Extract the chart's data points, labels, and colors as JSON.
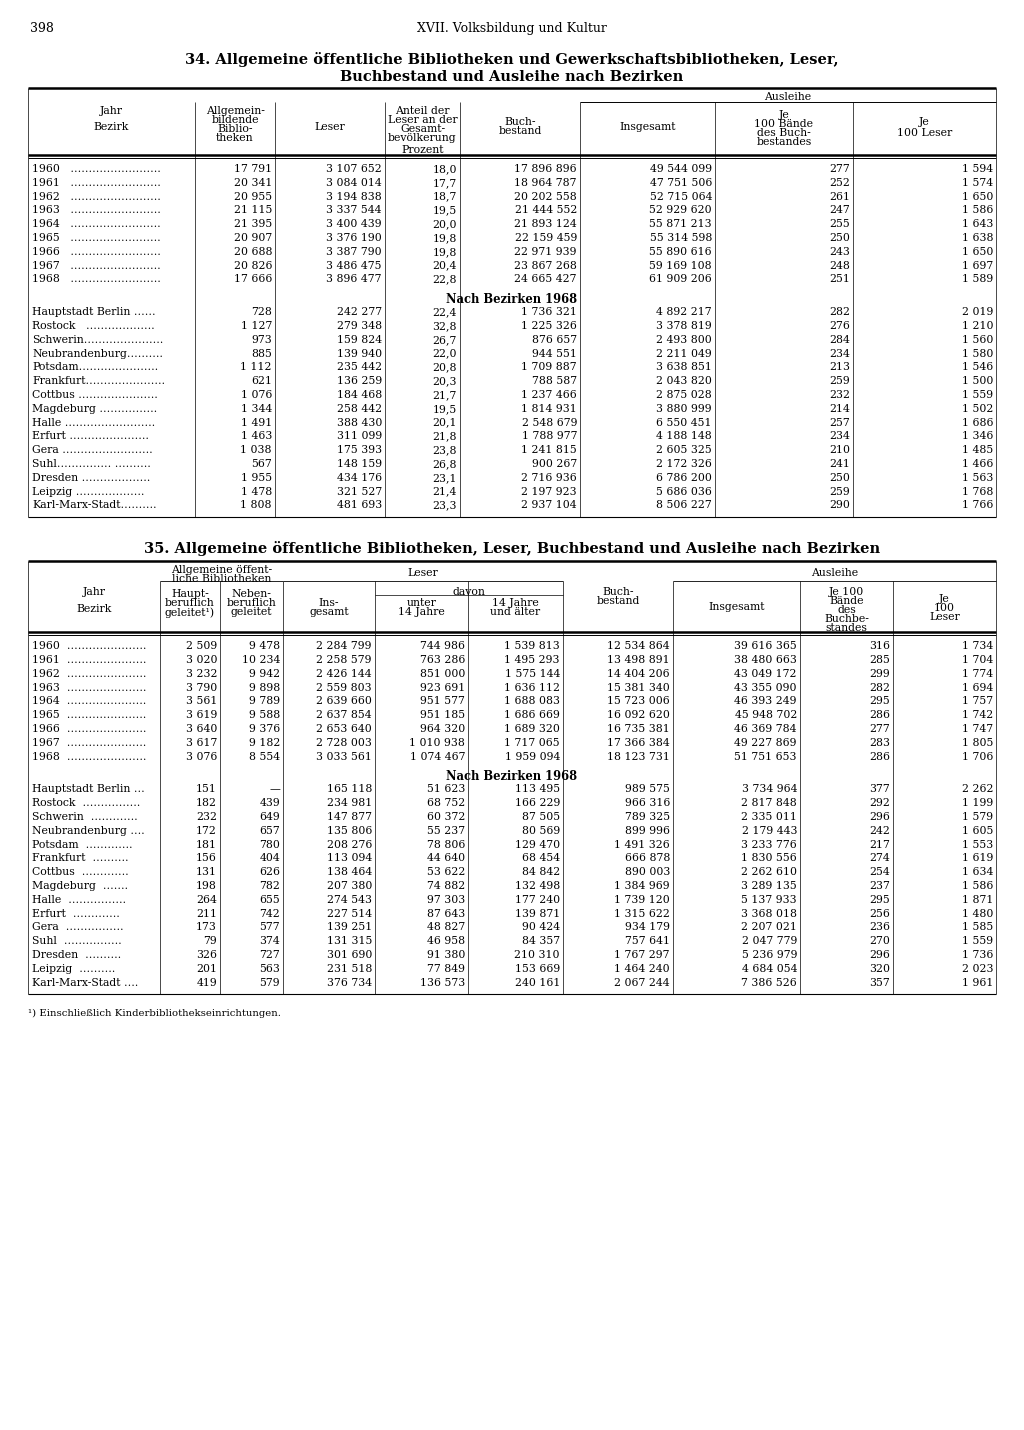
{
  "page_number": "398",
  "page_header": "XVII. Volksbildung und Kultur",
  "table1_title_line1": "34. Allgemeine öffentliche Bibliotheken und Gewerkschaftsbibliotheken, Leser,",
  "table1_title_line2": "Buchbestand und Ausleihe nach Bezirken",
  "table1_years": [
    [
      "1960   …………………….",
      "17 791",
      "3 107 652",
      "18,0",
      "17 896 896",
      "49 544 099",
      "277",
      "1 594"
    ],
    [
      "1961   …………………….",
      "20 341",
      "3 084 014",
      "17,7",
      "18 964 787",
      "47 751 506",
      "252",
      "1 574"
    ],
    [
      "1962   …………………….",
      "20 955",
      "3 194 838",
      "18,7",
      "20 202 558",
      "52 715 064",
      "261",
      "1 650"
    ],
    [
      "1963   …………………….",
      "21 115",
      "3 337 544",
      "19,5",
      "21 444 552",
      "52 929 620",
      "247",
      "1 586"
    ],
    [
      "1964   …………………….",
      "21 395",
      "3 400 439",
      "20,0",
      "21 893 124",
      "55 871 213",
      "255",
      "1 643"
    ],
    [
      "1965   …………………….",
      "20 907",
      "3 376 190",
      "19,8",
      "22 159 459",
      "55 314 598",
      "250",
      "1 638"
    ],
    [
      "1966   …………………….",
      "20 688",
      "3 387 790",
      "19,8",
      "22 971 939",
      "55 890 616",
      "243",
      "1 650"
    ],
    [
      "1967   …………………….",
      "20 826",
      "3 486 475",
      "20,4",
      "23 867 268",
      "59 169 108",
      "248",
      "1 697"
    ],
    [
      "1968   …………………….",
      "17 666",
      "3 896 477",
      "22,8",
      "24 665 427",
      "61 909 206",
      "251",
      "1 589"
    ]
  ],
  "table1_bezirken_header": "Nach Bezirken 1968",
  "table1_bezirken": [
    [
      "Hauptstadt Berlin ……",
      "728",
      "242 277",
      "22,4",
      "1 736 321",
      "4 892 217",
      "282",
      "2 019"
    ],
    [
      "Rostock   ……………….",
      "1 127",
      "279 348",
      "32,8",
      "1 225 326",
      "3 378 819",
      "276",
      "1 210"
    ],
    [
      "Schwerin………………….",
      "973",
      "159 824",
      "26,7",
      "876 657",
      "2 493 800",
      "284",
      "1 560"
    ],
    [
      "Neubrandenburg……….",
      "885",
      "139 940",
      "22,0",
      "944 551",
      "2 211 049",
      "234",
      "1 580"
    ],
    [
      "Potsdam………………….",
      "1 112",
      "235 442",
      "20,8",
      "1 709 887",
      "3 638 851",
      "213",
      "1 546"
    ],
    [
      "Frankfurt………………….",
      "621",
      "136 259",
      "20,3",
      "788 587",
      "2 043 820",
      "259",
      "1 500"
    ],
    [
      "Cottbus ………………….",
      "1 076",
      "184 468",
      "21,7",
      "1 237 466",
      "2 875 028",
      "232",
      "1 559"
    ],
    [
      "Magdeburg …………….",
      "1 344",
      "258 442",
      "19,5",
      "1 814 931",
      "3 880 999",
      "214",
      "1 502"
    ],
    [
      "Halle …………………….",
      "1 491",
      "388 430",
      "20,1",
      "2 548 679",
      "6 550 451",
      "257",
      "1 686"
    ],
    [
      "Erfurt ………………….",
      "1 463",
      "311 099",
      "21,8",
      "1 788 977",
      "4 188 148",
      "234",
      "1 346"
    ],
    [
      "Gera …………………….",
      "1 038",
      "175 393",
      "23,8",
      "1 241 815",
      "2 605 325",
      "210",
      "1 485"
    ],
    [
      "Suhl…………… ……….",
      "567",
      "148 159",
      "26,8",
      "900 267",
      "2 172 326",
      "241",
      "1 466"
    ],
    [
      "Dresden ……………….",
      "1 955",
      "434 176",
      "23,1",
      "2 716 936",
      "6 786 200",
      "250",
      "1 563"
    ],
    [
      "Leipzig ……………….",
      "1 478",
      "321 527",
      "21,4",
      "2 197 923",
      "5 686 036",
      "259",
      "1 768"
    ],
    [
      "Karl-Marx-Stadt……….",
      "1 808",
      "481 693",
      "23,3",
      "2 937 104",
      "8 506 227",
      "290",
      "1 766"
    ]
  ],
  "table2_title": "35. Allgemeine öffentliche Bibliotheken, Leser, Buchbestand und Ausleihe nach Bezirken",
  "table2_years": [
    [
      "1960  ………………….",
      "2 509",
      "9 478",
      "2 284 799",
      "744 986",
      "1 539 813",
      "12 534 864",
      "39 616 365",
      "316",
      "1 734"
    ],
    [
      "1961  ………………….",
      "3 020",
      "10 234",
      "2 258 579",
      "763 286",
      "1 495 293",
      "13 498 891",
      "38 480 663",
      "285",
      "1 704"
    ],
    [
      "1962  ………………….",
      "3 232",
      "9 942",
      "2 426 144",
      "851 000",
      "1 575 144",
      "14 404 206",
      "43 049 172",
      "299",
      "1 774"
    ],
    [
      "1963  ………………….",
      "3 790",
      "9 898",
      "2 559 803",
      "923 691",
      "1 636 112",
      "15 381 340",
      "43 355 090",
      "282",
      "1 694"
    ],
    [
      "1964  ………………….",
      "3 561",
      "9 789",
      "2 639 660",
      "951 577",
      "1 688 083",
      "15 723 006",
      "46 393 249",
      "295",
      "1 757"
    ],
    [
      "1965  ………………….",
      "3 619",
      "9 588",
      "2 637 854",
      "951 185",
      "1 686 669",
      "16 092 620",
      "45 948 702",
      "286",
      "1 742"
    ],
    [
      "1966  ………………….",
      "3 640",
      "9 376",
      "2 653 640",
      "964 320",
      "1 689 320",
      "16 735 381",
      "46 369 784",
      "277",
      "1 747"
    ],
    [
      "1967  ………………….",
      "3 617",
      "9 182",
      "2 728 003",
      "1 010 938",
      "1 717 065",
      "17 366 384",
      "49 227 869",
      "283",
      "1 805"
    ],
    [
      "1968  ………………….",
      "3 076",
      "8 554",
      "3 033 561",
      "1 074 467",
      "1 959 094",
      "18 123 731",
      "51 751 653",
      "286",
      "1 706"
    ]
  ],
  "table2_bezirken_header": "Nach Bezirken 1968",
  "table2_bezirken": [
    [
      "Hauptstadt Berlin …",
      "151",
      "—",
      "165 118",
      "51 623",
      "113 495",
      "989 575",
      "3 734 964",
      "377",
      "2 262"
    ],
    [
      "Rostock  …………….",
      "182",
      "439",
      "234 981",
      "68 752",
      "166 229",
      "966 316",
      "2 817 848",
      "292",
      "1 199"
    ],
    [
      "Schwerin  ………….",
      "232",
      "649",
      "147 877",
      "60 372",
      "87 505",
      "789 325",
      "2 335 011",
      "296",
      "1 579"
    ],
    [
      "Neubrandenburg ….",
      "172",
      "657",
      "135 806",
      "55 237",
      "80 569",
      "899 996",
      "2 179 443",
      "242",
      "1 605"
    ],
    [
      "Potsdam  ………….",
      "181",
      "780",
      "208 276",
      "78 806",
      "129 470",
      "1 491 326",
      "3 233 776",
      "217",
      "1 553"
    ],
    [
      "Frankfurt  ……….",
      "156",
      "404",
      "113 094",
      "44 640",
      "68 454",
      "666 878",
      "1 830 556",
      "274",
      "1 619"
    ],
    [
      "Cottbus  ………….",
      "131",
      "626",
      "138 464",
      "53 622",
      "84 842",
      "890 003",
      "2 262 610",
      "254",
      "1 634"
    ],
    [
      "Magdeburg  …….",
      "198",
      "782",
      "207 380",
      "74 882",
      "132 498",
      "1 384 969",
      "3 289 135",
      "237",
      "1 586"
    ],
    [
      "Halle  …………….",
      "264",
      "655",
      "274 543",
      "97 303",
      "177 240",
      "1 739 120",
      "5 137 933",
      "295",
      "1 871"
    ],
    [
      "Erfurt  ………….",
      "211",
      "742",
      "227 514",
      "87 643",
      "139 871",
      "1 315 622",
      "3 368 018",
      "256",
      "1 480"
    ],
    [
      "Gera  …………….",
      "173",
      "577",
      "139 251",
      "48 827",
      "90 424",
      "934 179",
      "2 207 021",
      "236",
      "1 585"
    ],
    [
      "Suhl  …………….",
      "79",
      "374",
      "131 315",
      "46 958",
      "84 357",
      "757 641",
      "2 047 779",
      "270",
      "1 559"
    ],
    [
      "Dresden  ……….",
      "326",
      "727",
      "301 690",
      "91 380",
      "210 310",
      "1 767 297",
      "5 236 979",
      "296",
      "1 736"
    ],
    [
      "Leipzig  ……….",
      "201",
      "563",
      "231 518",
      "77 849",
      "153 669",
      "1 464 240",
      "4 684 054",
      "320",
      "2 023"
    ],
    [
      "Karl-Marx-Stadt ….",
      "419",
      "579",
      "376 734",
      "136 573",
      "240 161",
      "2 067 244",
      "7 386 526",
      "357",
      "1 961"
    ]
  ],
  "table2_footnote": "¹) Einschließlich Kinderbibliothekseinrichtungen.",
  "bg_color": "#ffffff",
  "font_size": 7.8,
  "title_font_size": 10.5
}
